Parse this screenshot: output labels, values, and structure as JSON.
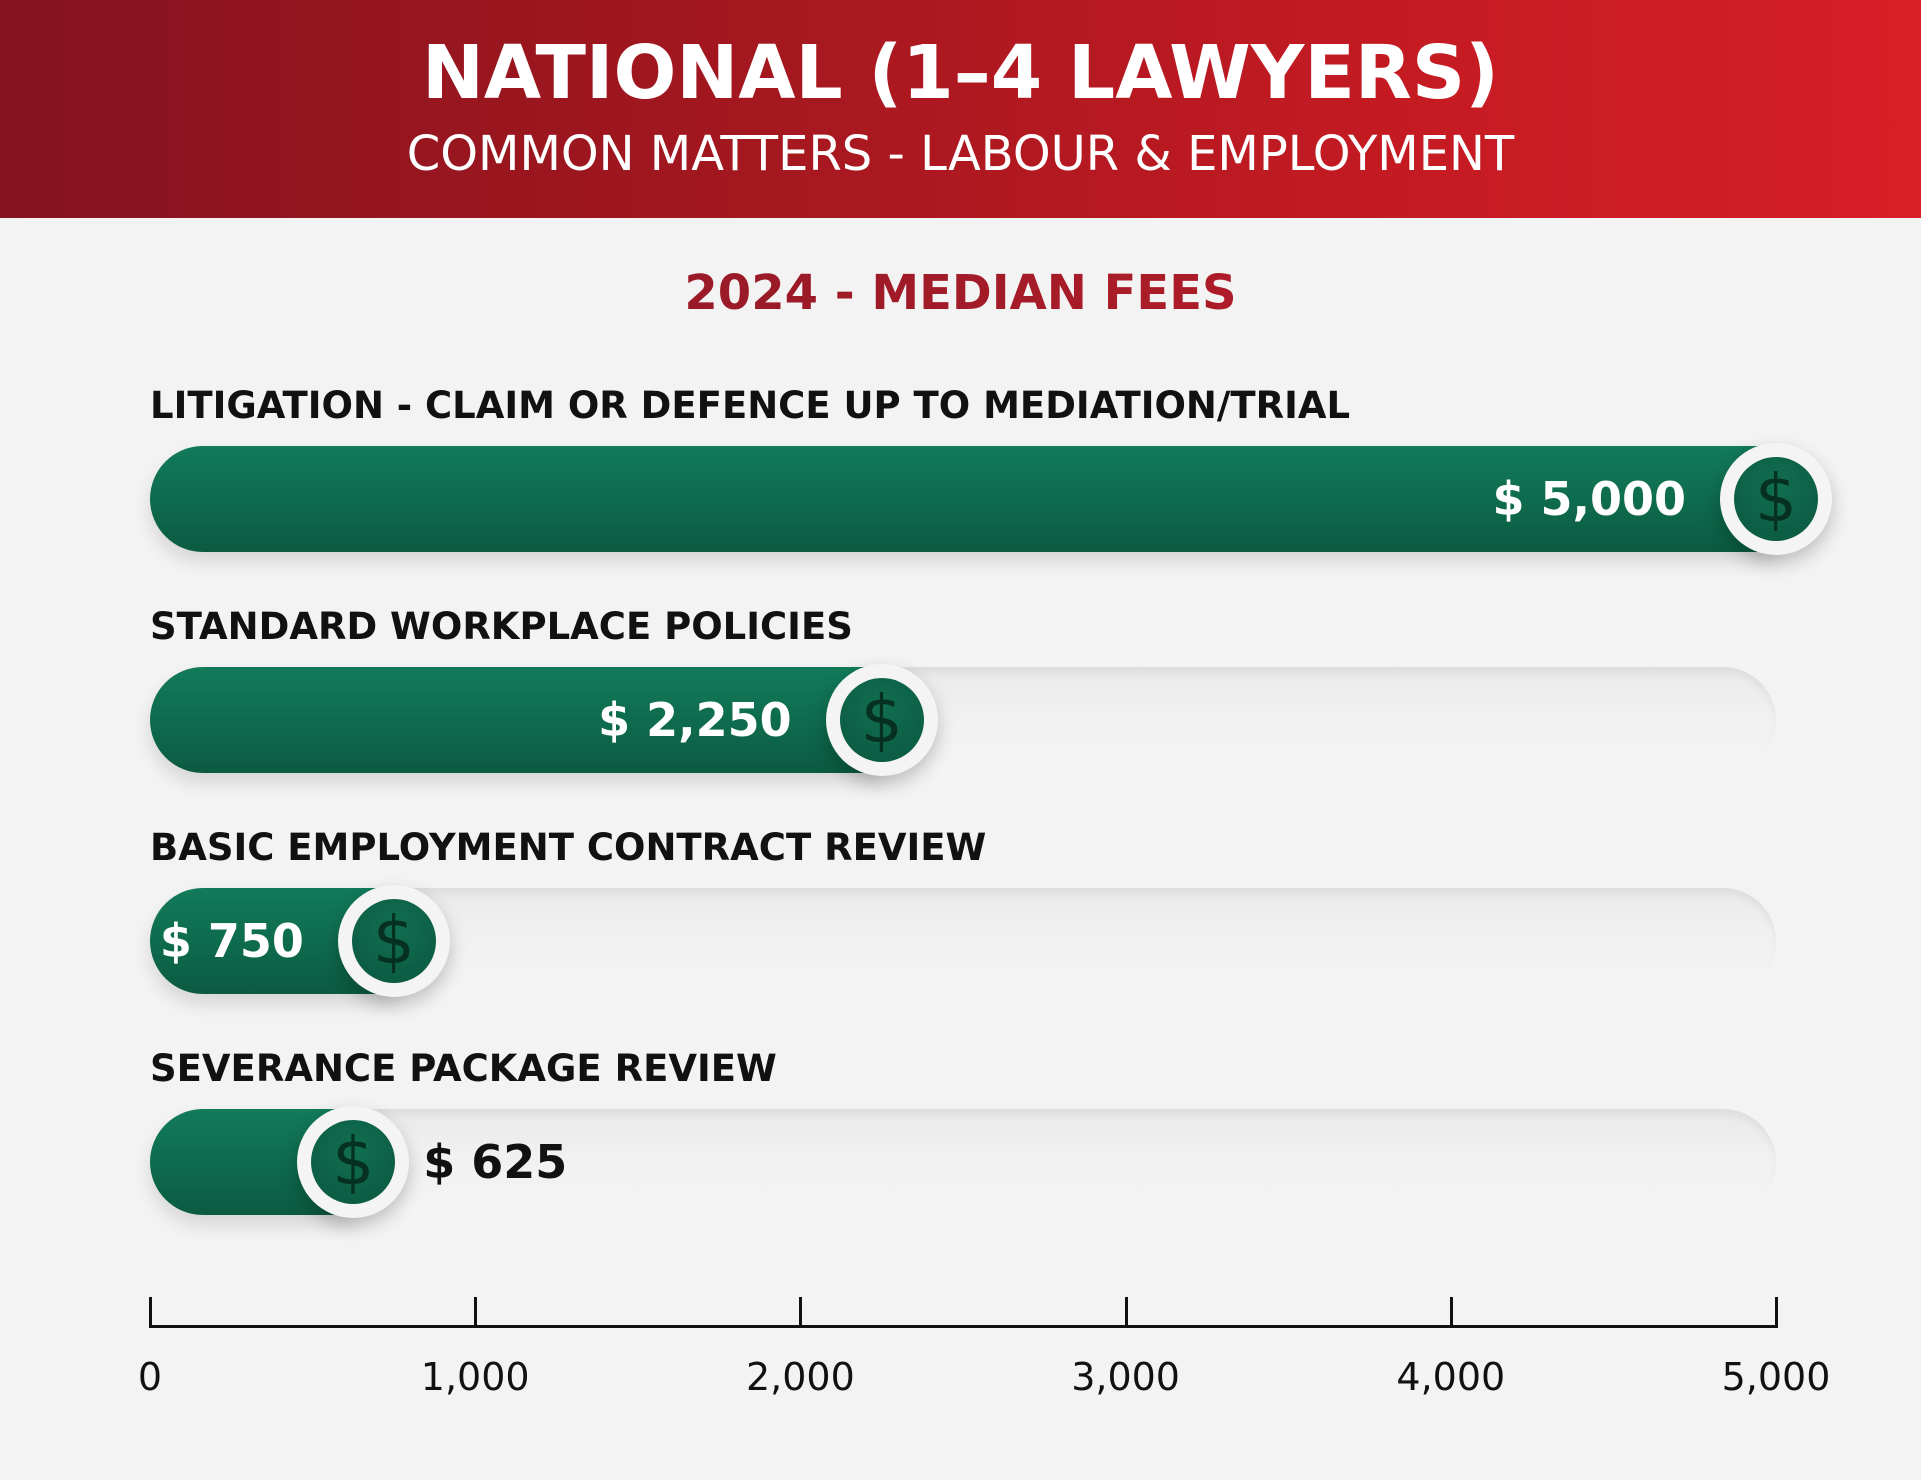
{
  "header": {
    "title": "NATIONAL (1–4 LAWYERS)",
    "subtitle": "COMMON MATTERS - LABOUR & EMPLOYMENT"
  },
  "colors": {
    "header_red_dark": "#861320",
    "header_red_light": "#d81f26",
    "bar_green": "#0e6a4d",
    "coin_green": "#0a573f",
    "background": "#f3f3f3"
  },
  "icon": "dollar-coin-icon",
  "coin_symbol": "$",
  "chart_data": {
    "type": "bar",
    "orientation": "horizontal",
    "title": "2024 - MEDIAN FEES",
    "categories": [
      "LITIGATION - CLAIM OR DEFENCE UP TO MEDIATION/TRIAL",
      "STANDARD WORKPLACE POLICIES",
      "BASIC EMPLOYMENT CONTRACT REVIEW",
      "SEVERANCE PACKAGE REVIEW"
    ],
    "values": [
      5000,
      2250,
      750,
      625
    ],
    "value_labels": [
      "$ 5,000",
      "$ 2,250",
      "$ 750",
      "$ 625"
    ],
    "xlim": [
      0,
      5000
    ],
    "xticks": [
      0,
      1000,
      2000,
      3000,
      4000,
      5000
    ],
    "xtick_labels": [
      "0",
      "1,000",
      "2,000",
      "3,000",
      "4,000",
      "5,000"
    ],
    "xlabel": "",
    "ylabel": "",
    "grid": false
  }
}
